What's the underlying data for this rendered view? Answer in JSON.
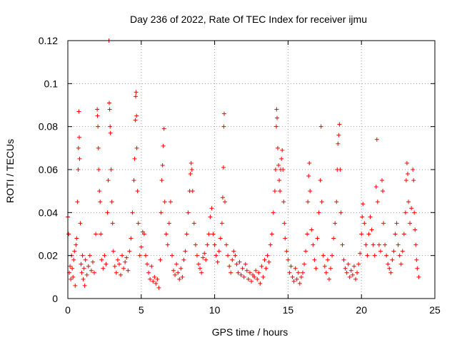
{
  "chart_data": {
    "type": "scatter",
    "title": "Day 236 of 2022, Rate Of TEC Index for receiver ijmu",
    "xlabel": "GPS time / hours",
    "ylabel": "ROTI / TECUs",
    "xlim": [
      0,
      25
    ],
    "ylim": [
      0,
      0.12
    ],
    "xticks": [
      0,
      5,
      10,
      15,
      20,
      25
    ],
    "yticks": [
      0,
      0.02,
      0.04,
      0.06,
      0.08,
      0.1,
      0.12
    ],
    "xtick_labels": [
      "0",
      "5",
      "10",
      "15",
      "20",
      "25"
    ],
    "ytick_labels": [
      "0",
      "0.02",
      "0.04",
      "0.06",
      "0.08",
      "0.1",
      "0.12"
    ],
    "grid": true,
    "marker": "+",
    "color": "#ff0000",
    "series": [
      {
        "points": [
          [
            0.0,
            0.038
          ],
          [
            0.05,
            0.03
          ],
          [
            0.1,
            0.012
          ],
          [
            0.15,
            0.015
          ],
          [
            0.2,
            0.009
          ],
          [
            0.25,
            0.02
          ],
          [
            0.3,
            0.014
          ],
          [
            0.35,
            0.01
          ],
          [
            0.4,
            0.018
          ],
          [
            0.45,
            0.022
          ],
          [
            0.5,
            0.006
          ],
          [
            0.55,
            0.025
          ],
          [
            0.6,
            0.028
          ],
          [
            0.65,
            0.045
          ],
          [
            0.7,
            0.06
          ],
          [
            0.72,
            0.07
          ],
          [
            0.75,
            0.087
          ],
          [
            0.78,
            0.075
          ],
          [
            0.8,
            0.065
          ],
          [
            0.85,
            0.035
          ],
          [
            0.9,
            0.016
          ],
          [
            0.95,
            0.012
          ],
          [
            1.0,
            0.02
          ],
          [
            1.05,
            0.009
          ],
          [
            1.1,
            0.014
          ],
          [
            1.15,
            0.006
          ],
          [
            1.2,
            0.018
          ],
          [
            1.3,
            0.011
          ],
          [
            1.4,
            0.015
          ],
          [
            1.5,
            0.02
          ],
          [
            1.6,
            0.013
          ],
          [
            1.7,
            0.017
          ],
          [
            1.8,
            0.012
          ],
          [
            1.9,
            0.03
          ],
          [
            2.0,
            0.088
          ],
          [
            2.02,
            0.085
          ],
          [
            2.05,
            0.08
          ],
          [
            2.08,
            0.07
          ],
          [
            2.1,
            0.06
          ],
          [
            2.15,
            0.05
          ],
          [
            2.2,
            0.045
          ],
          [
            2.25,
            0.03
          ],
          [
            2.3,
            0.018
          ],
          [
            2.4,
            0.014
          ],
          [
            2.5,
            0.02
          ],
          [
            2.6,
            0.016
          ],
          [
            2.7,
            0.04
          ],
          [
            2.75,
            0.055
          ],
          [
            2.8,
            0.12
          ],
          [
            2.82,
            0.091
          ],
          [
            2.85,
            0.088
          ],
          [
            2.88,
            0.08
          ],
          [
            2.9,
            0.077
          ],
          [
            2.95,
            0.06
          ],
          [
            3.0,
            0.045
          ],
          [
            3.05,
            0.035
          ],
          [
            3.1,
            0.022
          ],
          [
            3.2,
            0.015
          ],
          [
            3.3,
            0.012
          ],
          [
            3.4,
            0.018
          ],
          [
            3.5,
            0.016
          ],
          [
            3.6,
            0.011
          ],
          [
            3.7,
            0.02
          ],
          [
            3.8,
            0.014
          ],
          [
            3.9,
            0.017
          ],
          [
            4.0,
            0.019
          ],
          [
            4.1,
            0.013
          ],
          [
            4.2,
            0.022
          ],
          [
            4.3,
            0.028
          ],
          [
            4.4,
            0.04
          ],
          [
            4.5,
            0.055
          ],
          [
            4.55,
            0.065
          ],
          [
            4.6,
            0.083
          ],
          [
            4.62,
            0.094
          ],
          [
            4.65,
            0.096
          ],
          [
            4.68,
            0.085
          ],
          [
            4.7,
            0.07
          ],
          [
            4.75,
            0.05
          ],
          [
            4.8,
            0.035
          ],
          [
            4.9,
            0.02
          ],
          [
            5.0,
            0.024
          ],
          [
            5.1,
            0.031
          ],
          [
            5.2,
            0.03
          ],
          [
            5.3,
            0.02
          ],
          [
            5.4,
            0.016
          ],
          [
            5.5,
            0.012
          ],
          [
            5.6,
            0.009
          ],
          [
            5.7,
            0.015
          ],
          [
            5.8,
            0.008
          ],
          [
            5.9,
            0.01
          ],
          [
            6.0,
            0.007
          ],
          [
            6.1,
            0.009
          ],
          [
            6.2,
            0.005
          ],
          [
            6.3,
            0.018
          ],
          [
            6.35,
            0.04
          ],
          [
            6.4,
            0.055
          ],
          [
            6.45,
            0.062
          ],
          [
            6.5,
            0.071
          ],
          [
            6.55,
            0.079
          ],
          [
            6.6,
            0.045
          ],
          [
            6.7,
            0.03
          ],
          [
            6.8,
            0.025
          ],
          [
            6.9,
            0.035
          ],
          [
            7.0,
            0.045
          ],
          [
            7.1,
            0.02
          ],
          [
            7.2,
            0.013
          ],
          [
            7.3,
            0.011
          ],
          [
            7.4,
            0.016
          ],
          [
            7.5,
            0.012
          ],
          [
            7.6,
            0.009
          ],
          [
            7.7,
            0.014
          ],
          [
            7.8,
            0.01
          ],
          [
            7.9,
            0.018
          ],
          [
            8.0,
            0.022
          ],
          [
            8.1,
            0.03
          ],
          [
            8.2,
            0.04
          ],
          [
            8.3,
            0.05
          ],
          [
            8.35,
            0.058
          ],
          [
            8.4,
            0.063
          ],
          [
            8.45,
            0.06
          ],
          [
            8.5,
            0.05
          ],
          [
            8.6,
            0.035
          ],
          [
            8.7,
            0.025
          ],
          [
            8.8,
            0.02
          ],
          [
            8.9,
            0.016
          ],
          [
            9.0,
            0.014
          ],
          [
            9.1,
            0.012
          ],
          [
            9.2,
            0.019
          ],
          [
            9.3,
            0.021
          ],
          [
            9.4,
            0.018
          ],
          [
            9.5,
            0.025
          ],
          [
            9.6,
            0.03
          ],
          [
            9.7,
            0.038
          ],
          [
            9.8,
            0.042
          ],
          [
            9.9,
            0.03
          ],
          [
            10.0,
            0.025
          ],
          [
            10.1,
            0.02
          ],
          [
            10.2,
            0.017
          ],
          [
            10.3,
            0.022
          ],
          [
            10.4,
            0.028
          ],
          [
            10.5,
            0.035
          ],
          [
            10.55,
            0.047
          ],
          [
            10.6,
            0.061
          ],
          [
            10.62,
            0.08
          ],
          [
            10.65,
            0.086
          ],
          [
            10.7,
            0.045
          ],
          [
            10.8,
            0.025
          ],
          [
            10.9,
            0.02
          ],
          [
            11.0,
            0.015
          ],
          [
            11.1,
            0.012
          ],
          [
            11.2,
            0.018
          ],
          [
            11.3,
            0.022
          ],
          [
            11.4,
            0.02
          ],
          [
            11.5,
            0.016
          ],
          [
            11.6,
            0.012
          ],
          [
            11.7,
            0.017
          ],
          [
            11.8,
            0.011
          ],
          [
            11.9,
            0.014
          ],
          [
            12.0,
            0.01
          ],
          [
            12.1,
            0.016
          ],
          [
            12.2,
            0.013
          ],
          [
            12.3,
            0.009
          ],
          [
            12.4,
            0.012
          ],
          [
            12.5,
            0.008
          ],
          [
            12.6,
            0.011
          ],
          [
            12.7,
            0.01
          ],
          [
            12.8,
            0.013
          ],
          [
            12.9,
            0.009
          ],
          [
            13.0,
            0.012
          ],
          [
            13.1,
            0.007
          ],
          [
            13.2,
            0.015
          ],
          [
            13.3,
            0.01
          ],
          [
            13.4,
            0.018
          ],
          [
            13.5,
            0.014
          ],
          [
            13.6,
            0.02
          ],
          [
            13.7,
            0.017
          ],
          [
            13.8,
            0.025
          ],
          [
            13.9,
            0.03
          ],
          [
            14.0,
            0.04
          ],
          [
            14.1,
            0.05
          ],
          [
            14.15,
            0.06
          ],
          [
            14.2,
            0.08
          ],
          [
            14.22,
            0.088
          ],
          [
            14.25,
            0.084
          ],
          [
            14.3,
            0.07
          ],
          [
            14.35,
            0.062
          ],
          [
            14.4,
            0.055
          ],
          [
            14.45,
            0.05
          ],
          [
            14.5,
            0.06
          ],
          [
            14.55,
            0.065
          ],
          [
            14.6,
            0.069
          ],
          [
            14.65,
            0.06
          ],
          [
            14.7,
            0.045
          ],
          [
            14.75,
            0.035
          ],
          [
            14.8,
            0.028
          ],
          [
            14.9,
            0.022
          ],
          [
            15.0,
            0.018
          ],
          [
            15.1,
            0.012
          ],
          [
            15.2,
            0.015
          ],
          [
            15.3,
            0.01
          ],
          [
            15.4,
            0.008
          ],
          [
            15.5,
            0.014
          ],
          [
            15.6,
            0.009
          ],
          [
            15.7,
            0.012
          ],
          [
            15.8,
            0.007
          ],
          [
            15.9,
            0.01
          ],
          [
            16.0,
            0.012
          ],
          [
            16.1,
            0.016
          ],
          [
            16.2,
            0.022
          ],
          [
            16.3,
            0.03
          ],
          [
            16.35,
            0.045
          ],
          [
            16.4,
            0.057
          ],
          [
            16.45,
            0.063
          ],
          [
            16.5,
            0.05
          ],
          [
            16.6,
            0.032
          ],
          [
            16.7,
            0.025
          ],
          [
            16.8,
            0.018
          ],
          [
            16.9,
            0.014
          ],
          [
            17.0,
            0.028
          ],
          [
            17.1,
            0.04
          ],
          [
            17.2,
            0.055
          ],
          [
            17.25,
            0.08
          ],
          [
            17.3,
            0.045
          ],
          [
            17.4,
            0.02
          ],
          [
            17.5,
            0.015
          ],
          [
            17.6,
            0.012
          ],
          [
            17.7,
            0.018
          ],
          [
            17.8,
            0.009
          ],
          [
            17.9,
            0.014
          ],
          [
            18.0,
            0.02
          ],
          [
            18.1,
            0.028
          ],
          [
            18.2,
            0.035
          ],
          [
            18.3,
            0.045
          ],
          [
            18.35,
            0.06
          ],
          [
            18.4,
            0.072
          ],
          [
            18.45,
            0.076
          ],
          [
            18.5,
            0.081
          ],
          [
            18.55,
            0.06
          ],
          [
            18.6,
            0.04
          ],
          [
            18.7,
            0.025
          ],
          [
            18.8,
            0.018
          ],
          [
            18.9,
            0.014
          ],
          [
            19.0,
            0.012
          ],
          [
            19.1,
            0.016
          ],
          [
            19.2,
            0.01
          ],
          [
            19.3,
            0.013
          ],
          [
            19.4,
            0.011
          ],
          [
            19.5,
            0.015
          ],
          [
            19.6,
            0.009
          ],
          [
            19.7,
            0.012
          ],
          [
            19.8,
            0.016
          ],
          [
            19.9,
            0.021
          ],
          [
            20.0,
            0.03
          ],
          [
            20.05,
            0.038
          ],
          [
            20.1,
            0.044
          ],
          [
            20.2,
            0.035
          ],
          [
            20.3,
            0.025
          ],
          [
            20.4,
            0.02
          ],
          [
            20.5,
            0.03
          ],
          [
            20.6,
            0.038
          ],
          [
            20.7,
            0.032
          ],
          [
            20.8,
            0.025
          ],
          [
            20.9,
            0.02
          ],
          [
            21.0,
            0.052
          ],
          [
            21.05,
            0.074
          ],
          [
            21.1,
            0.045
          ],
          [
            21.2,
            0.025
          ],
          [
            21.3,
            0.022
          ],
          [
            21.4,
            0.055
          ],
          [
            21.45,
            0.05
          ],
          [
            21.5,
            0.035
          ],
          [
            21.6,
            0.025
          ],
          [
            21.7,
            0.02
          ],
          [
            21.8,
            0.016
          ],
          [
            21.9,
            0.014
          ],
          [
            22.0,
            0.012
          ],
          [
            22.1,
            0.018
          ],
          [
            22.2,
            0.022
          ],
          [
            22.3,
            0.03
          ],
          [
            22.4,
            0.035
          ],
          [
            22.5,
            0.025
          ],
          [
            22.6,
            0.02
          ],
          [
            22.7,
            0.016
          ],
          [
            22.8,
            0.022
          ],
          [
            22.9,
            0.03
          ],
          [
            23.0,
            0.04
          ],
          [
            23.05,
            0.055
          ],
          [
            23.1,
            0.063
          ],
          [
            23.15,
            0.058
          ],
          [
            23.2,
            0.045
          ],
          [
            23.3,
            0.035
          ],
          [
            23.4,
            0.042
          ],
          [
            23.5,
            0.06
          ],
          [
            23.55,
            0.055
          ],
          [
            23.6,
            0.04
          ],
          [
            23.65,
            0.032
          ],
          [
            23.7,
            0.025
          ],
          [
            23.75,
            0.018
          ],
          [
            23.8,
            0.014
          ],
          [
            23.9,
            0.01
          ]
        ]
      }
    ]
  }
}
